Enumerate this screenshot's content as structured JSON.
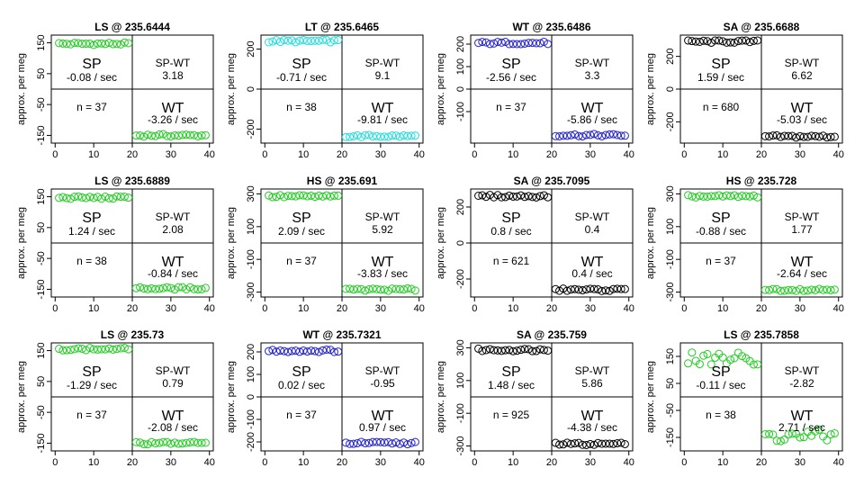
{
  "colors": {
    "green": "#22cc22",
    "cyan": "#22dddd",
    "blue": "#2222cc",
    "black": "#000000"
  },
  "chart_data": [
    {
      "type": "scatter",
      "title": "LS @ 235.6444",
      "ylabel": "approx. per meg",
      "color": "green",
      "ylim": [
        -175,
        175
      ],
      "yticks": [
        150,
        50,
        -50,
        -150
      ],
      "ytick_labels": [
        "150",
        "50",
        "-50",
        "-150"
      ],
      "xlim": [
        -1,
        41
      ],
      "xticks": [
        0,
        10,
        20,
        30,
        40
      ],
      "ytop": 147,
      "ybot": -150,
      "left": {
        "big": "SP",
        "rate": "-0.08 / sec",
        "n": "n = 37"
      },
      "right": {
        "diff_label": "SP-WT",
        "diff": "3.18",
        "big": "WT",
        "rate": "-3.26 / sec"
      }
    },
    {
      "type": "scatter",
      "title": "LT @ 235.6465",
      "ylabel": "approx. per meg",
      "color": "cyan",
      "ylim": [
        -270,
        270
      ],
      "yticks": [
        200,
        0,
        -200
      ],
      "ytick_labels": [
        "200",
        "0",
        "-200"
      ],
      "xlim": [
        -1,
        41
      ],
      "xticks": [
        0,
        10,
        20,
        30,
        40
      ],
      "ytop": 240,
      "ybot": -235,
      "left": {
        "big": "SP",
        "rate": "-0.71 / sec",
        "n": "n = 38"
      },
      "right": {
        "diff_label": "SP-WT",
        "diff": "9.1",
        "big": "WT",
        "rate": "-9.81 / sec"
      }
    },
    {
      "type": "scatter",
      "title": "WT @ 235.6486",
      "ylabel": "approx. per meg",
      "color": "blue",
      "ylim": [
        -240,
        240
      ],
      "yticks": [
        200,
        100,
        0,
        -100
      ],
      "ytick_labels": [
        "200",
        "100",
        "0",
        "-100"
      ],
      "xlim": [
        -1,
        41
      ],
      "xticks": [
        0,
        10,
        20,
        30,
        40
      ],
      "ytop": 205,
      "ybot": -205,
      "left": {
        "big": "SP",
        "rate": "-2.56 / sec",
        "n": "n = 37"
      },
      "right": {
        "diff_label": "SP-WT",
        "diff": "3.3",
        "big": "WT",
        "rate": "-5.86 / sec"
      }
    },
    {
      "type": "scatter",
      "title": "SA @ 235.6688",
      "ylabel": "approx. per meg",
      "color": "black",
      "ylim": [
        -330,
        330
      ],
      "yticks": [
        200,
        0,
        -200
      ],
      "ytick_labels": [
        "200",
        "0",
        "-200"
      ],
      "xlim": [
        -1,
        41
      ],
      "xticks": [
        0,
        10,
        20,
        30,
        40
      ],
      "ytop": 290,
      "ybot": -290,
      "left": {
        "big": "SP",
        "rate": "1.59 / sec",
        "n": "n = 680"
      },
      "right": {
        "diff_label": "SP-WT",
        "diff": "6.62",
        "big": "WT",
        "rate": "-5.03 / sec"
      }
    },
    {
      "type": "scatter",
      "title": "LS @ 235.6889",
      "ylabel": "approx. per meg",
      "color": "green",
      "ylim": [
        -175,
        175
      ],
      "yticks": [
        150,
        50,
        -50,
        -150
      ],
      "ytick_labels": [
        "150",
        "50",
        "-50",
        "-150"
      ],
      "xlim": [
        -1,
        41
      ],
      "xticks": [
        0,
        10,
        20,
        30,
        40
      ],
      "ytop": 147,
      "ybot": -147,
      "left": {
        "big": "SP",
        "rate": "1.24 / sec",
        "n": "n = 38"
      },
      "right": {
        "diff_label": "SP-WT",
        "diff": "2.08",
        "big": "WT",
        "rate": "-0.84 / sec"
      }
    },
    {
      "type": "scatter",
      "title": "HS @ 235.691",
      "ylabel": "approx. per meg",
      "color": "green",
      "ylim": [
        -330,
        330
      ],
      "yticks": [
        300,
        100,
        -100,
        -300
      ],
      "ytick_labels": [
        "300",
        "100",
        "-100",
        "-300"
      ],
      "xlim": [
        -1,
        41
      ],
      "xticks": [
        0,
        10,
        20,
        30,
        40
      ],
      "ytop": 285,
      "ybot": -285,
      "left": {
        "big": "SP",
        "rate": "2.09 / sec",
        "n": "n = 37"
      },
      "right": {
        "diff_label": "SP-WT",
        "diff": "5.92",
        "big": "WT",
        "rate": "-3.83 / sec"
      }
    },
    {
      "type": "scatter",
      "title": "SA @ 235.7095",
      "ylabel": "approx. per meg",
      "color": "black",
      "ylim": [
        -300,
        300
      ],
      "yticks": [
        200,
        0,
        -200
      ],
      "ytick_labels": [
        "200",
        "0",
        "-200"
      ],
      "xlim": [
        -1,
        41
      ],
      "xticks": [
        0,
        10,
        20,
        30,
        40
      ],
      "ytop": 260,
      "ybot": -260,
      "left": {
        "big": "SP",
        "rate": "0.8 / sec",
        "n": "n = 621"
      },
      "right": {
        "diff_label": "SP-WT",
        "diff": "0.4",
        "big": "WT",
        "rate": "0.4 / sec"
      }
    },
    {
      "type": "scatter",
      "title": "HS @ 235.728",
      "ylabel": "approx. per meg",
      "color": "green",
      "ylim": [
        -330,
        330
      ],
      "yticks": [
        300,
        100,
        -100,
        -300
      ],
      "ytick_labels": [
        "300",
        "100",
        "-100",
        "-300"
      ],
      "xlim": [
        -1,
        41
      ],
      "xticks": [
        0,
        10,
        20,
        30,
        40
      ],
      "ytop": 285,
      "ybot": -285,
      "left": {
        "big": "SP",
        "rate": "-0.88 / sec",
        "n": "n = 37"
      },
      "right": {
        "diff_label": "SP-WT",
        "diff": "1.77",
        "big": "WT",
        "rate": "-2.64 / sec"
      }
    },
    {
      "type": "scatter",
      "title": "LS @ 235.73",
      "ylabel": "approx. per meg",
      "color": "green",
      "ylim": [
        -175,
        175
      ],
      "yticks": [
        150,
        50,
        -50,
        -150
      ],
      "ytick_labels": [
        "150",
        "50",
        "-50",
        "-150"
      ],
      "xlim": [
        -1,
        41
      ],
      "xticks": [
        0,
        10,
        20,
        30,
        40
      ],
      "ytop": 155,
      "ybot": -150,
      "left": {
        "big": "SP",
        "rate": "-1.29 / sec",
        "n": "n = 37"
      },
      "right": {
        "diff_label": "SP-WT",
        "diff": "0.79",
        "big": "WT",
        "rate": "-2.08 / sec"
      }
    },
    {
      "type": "scatter",
      "title": "WT @ 235.7321",
      "ylabel": "approx. per meg",
      "color": "blue",
      "ylim": [
        -240,
        240
      ],
      "yticks": [
        200,
        100,
        0,
        -100,
        -200
      ],
      "ytick_labels": [
        "200",
        "100",
        "0",
        "-100",
        "-200"
      ],
      "xlim": [
        -1,
        41
      ],
      "xticks": [
        0,
        10,
        20,
        30,
        40
      ],
      "ytop": 205,
      "ybot": -205,
      "left": {
        "big": "SP",
        "rate": "0.02 / sec",
        "n": "n = 37"
      },
      "right": {
        "diff_label": "SP-WT",
        "diff": "-0.95",
        "big": "WT",
        "rate": "0.97 / sec"
      }
    },
    {
      "type": "scatter",
      "title": "SA @ 235.759",
      "ylabel": "approx. per meg",
      "color": "black",
      "ylim": [
        -330,
        330
      ],
      "yticks": [
        300,
        100,
        -100,
        -300
      ],
      "ytick_labels": [
        "300",
        "100",
        "-100",
        "-300"
      ],
      "xlim": [
        -1,
        41
      ],
      "xticks": [
        0,
        10,
        20,
        30,
        40
      ],
      "ytop": 287,
      "ybot": -287,
      "left": {
        "big": "SP",
        "rate": "1.48 / sec",
        "n": "n = 925"
      },
      "right": {
        "diff_label": "SP-WT",
        "diff": "5.86",
        "big": "WT",
        "rate": "-4.38 / sec"
      }
    },
    {
      "type": "scatter",
      "title": "LS @ 235.7858",
      "ylabel": "approx. per meg",
      "color": "green",
      "ylim": [
        -200,
        200
      ],
      "yticks": [
        150,
        50,
        -50,
        -150
      ],
      "ytick_labels": [
        "150",
        "50",
        "-50",
        "-150"
      ],
      "xlim": [
        -1,
        41
      ],
      "xticks": [
        0,
        10,
        20,
        30,
        40
      ],
      "ytop": 143,
      "ybot": -145,
      "left": {
        "big": "SP",
        "rate": "-0.11 / sec",
        "n": "n = 38"
      },
      "right": {
        "diff_label": "SP-WT",
        "diff": "-2.82",
        "big": "WT",
        "rate": "2.71 / sec"
      }
    }
  ]
}
